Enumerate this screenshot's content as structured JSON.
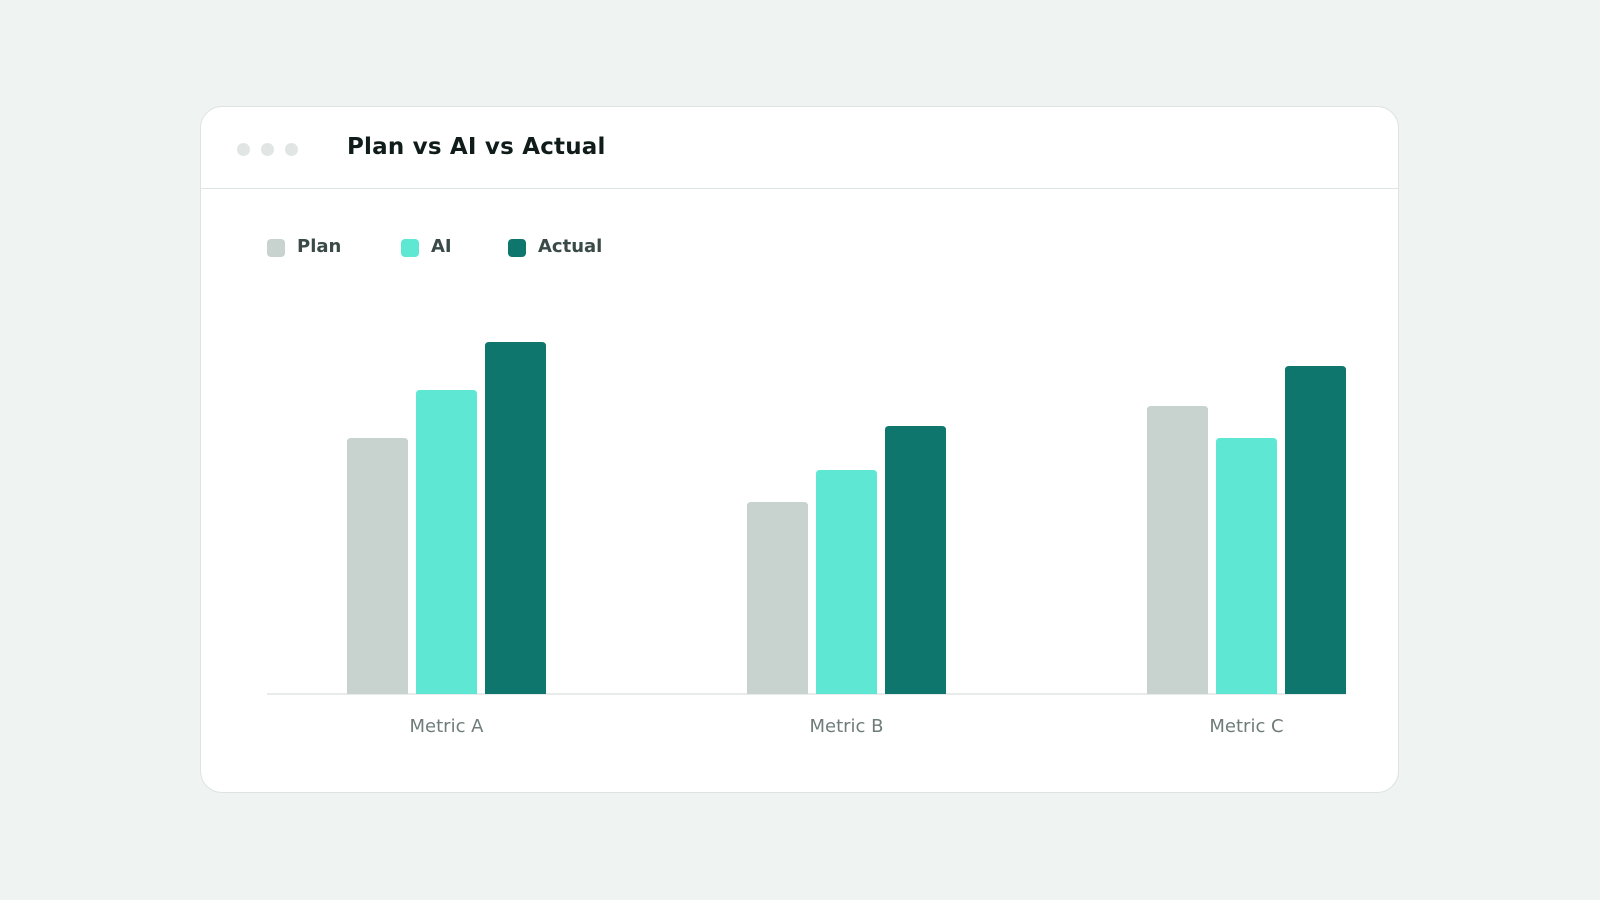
{
  "card": {
    "title": "Plan vs AI vs Actual",
    "window_dots": 3
  },
  "colors": {
    "page_bg": "#eff3f2",
    "plan": "#c8d2cf",
    "ai": "#5ee8d4",
    "actual": "#0f766e",
    "axis": "#dfe5e4"
  },
  "chart_data": {
    "type": "bar",
    "title": "Plan vs AI vs Actual",
    "categories": [
      "Metric A",
      "Metric B",
      "Metric C"
    ],
    "series": [
      {
        "name": "Plan",
        "color": "#c8d2cf",
        "values": [
          64,
          48,
          72
        ]
      },
      {
        "name": "AI",
        "color": "#5ee8d4",
        "values": [
          76,
          56,
          64
        ]
      },
      {
        "name": "Actual",
        "color": "#0f766e",
        "values": [
          88,
          67,
          82
        ]
      }
    ],
    "ylim": [
      0,
      100
    ],
    "grid": false,
    "legend": "top-left",
    "xlabel": "",
    "ylabel": ""
  }
}
